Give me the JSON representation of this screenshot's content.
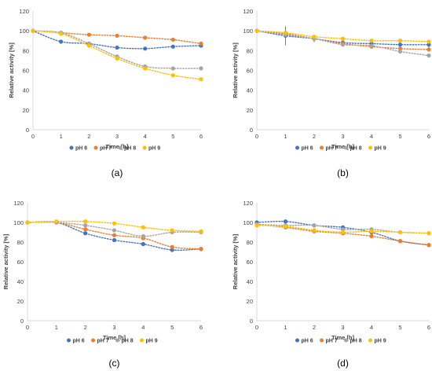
{
  "colors": {
    "pH 6": "#4472C4",
    "pH 7": "#ED7D31",
    "pH 8": "#A5A5A5",
    "pH 9": "#FFC000",
    "axis": "#D9D9D9",
    "text": "#404040"
  },
  "chart_data": [
    {
      "type": "scatter",
      "panel_label": "(a)",
      "xlabel": "Time [h]",
      "ylabel": "Relative activity [%]",
      "xlim": [
        0,
        6
      ],
      "ylim": [
        0,
        120
      ],
      "xticks": [
        0,
        1,
        2,
        3,
        4,
        5,
        6
      ],
      "yticks": [
        0,
        20,
        40,
        60,
        80,
        100,
        120
      ],
      "grid": false,
      "trendline": "dotted",
      "legend_position": "bottom",
      "x": [
        0,
        1,
        2,
        3,
        4,
        5,
        6
      ],
      "series": [
        {
          "name": "pH 6",
          "values": [
            100,
            89,
            87,
            83,
            82,
            84,
            85
          ]
        },
        {
          "name": "pH 7",
          "values": [
            100,
            98,
            96,
            95,
            93,
            91,
            87
          ]
        },
        {
          "name": "pH 8",
          "values": [
            100,
            98,
            87,
            74,
            64,
            62,
            62
          ]
        },
        {
          "name": "pH 9",
          "values": [
            100,
            97,
            85,
            72,
            62,
            55,
            51
          ]
        }
      ]
    },
    {
      "type": "scatter",
      "panel_label": "(b)",
      "xlabel": "Time [h]",
      "ylabel": "Relative activity [%]",
      "xlim": [
        0,
        6
      ],
      "ylim": [
        0,
        120
      ],
      "xticks": [
        0,
        1,
        2,
        3,
        4,
        5,
        6
      ],
      "yticks": [
        0,
        20,
        40,
        60,
        80,
        100,
        120
      ],
      "grid": false,
      "trendline": "dotted",
      "legend_position": "bottom",
      "x": [
        0,
        1,
        2,
        3,
        4,
        5,
        6
      ],
      "series": [
        {
          "name": "pH 6",
          "values": [
            100,
            95,
            92,
            88,
            87,
            86,
            86
          ]
        },
        {
          "name": "pH 7",
          "values": [
            100,
            97,
            92,
            87,
            84,
            82,
            81
          ]
        },
        {
          "name": "pH 8",
          "values": [
            100,
            96,
            92,
            86,
            85,
            79,
            75
          ]
        },
        {
          "name": "pH 9",
          "values": [
            100,
            98,
            94,
            92,
            90,
            90,
            89
          ]
        }
      ]
    },
    {
      "type": "scatter",
      "panel_label": "(c)",
      "xlabel": "Time [h]",
      "ylabel": "Relative activity [%]",
      "xlim": [
        0,
        6
      ],
      "ylim": [
        0,
        120
      ],
      "xticks": [
        0,
        1,
        2,
        3,
        4,
        5,
        6
      ],
      "yticks": [
        0,
        20,
        40,
        60,
        80,
        100,
        120
      ],
      "grid": false,
      "trendline": "dotted",
      "legend_position": "bottom",
      "x": [
        0,
        1,
        2,
        3,
        4,
        5,
        6
      ],
      "series": [
        {
          "name": "pH 6",
          "values": [
            100,
            100,
            89,
            82,
            78,
            72,
            73
          ]
        },
        {
          "name": "pH 7",
          "values": [
            100,
            100,
            93,
            87,
            84,
            75,
            73
          ]
        },
        {
          "name": "pH 8",
          "values": [
            100,
            100,
            97,
            92,
            86,
            90,
            90
          ]
        },
        {
          "name": "pH 9",
          "values": [
            100,
            101,
            101,
            99,
            95,
            92,
            91
          ]
        }
      ]
    },
    {
      "type": "scatter",
      "panel_label": "(d)",
      "xlabel": "Time [h]",
      "ylabel": "Relative activity [%]",
      "xlim": [
        0,
        6
      ],
      "ylim": [
        0,
        120
      ],
      "xticks": [
        0,
        1,
        2,
        3,
        4,
        5,
        6
      ],
      "yticks": [
        0,
        20,
        40,
        60,
        80,
        100,
        120
      ],
      "grid": false,
      "trendline": "dotted",
      "legend_position": "bottom",
      "x": [
        0,
        1,
        2,
        3,
        4,
        5,
        6
      ],
      "series": [
        {
          "name": "pH 6",
          "values": [
            100,
            101,
            97,
            95,
            90,
            81,
            77
          ]
        },
        {
          "name": "pH 7",
          "values": [
            98,
            95,
            91,
            89,
            86,
            81,
            77
          ]
        },
        {
          "name": "pH 8",
          "values": [
            98,
            97,
            97,
            93,
            93,
            90,
            89
          ]
        },
        {
          "name": "pH 9",
          "values": [
            97,
            96,
            92,
            90,
            91,
            90,
            89
          ]
        }
      ]
    }
  ]
}
